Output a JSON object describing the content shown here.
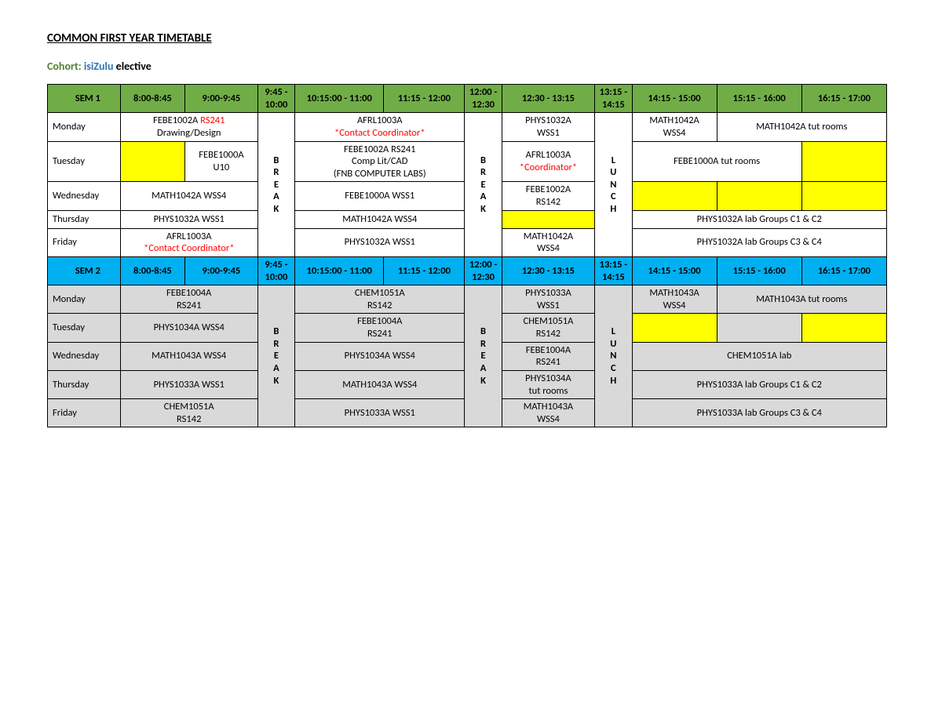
{
  "title": "COMMON FIRST YEAR TIMETABLE",
  "cohort": {
    "label": "Cohort:",
    "value": "isiZulu",
    "suffix": "elective"
  },
  "colors": {
    "header_green": "#70ad47",
    "header_blue": "#00b0f0",
    "highlight_yellow": "#ffff00",
    "grey_fill": "#d9d9d9",
    "red_text": "#ff0000",
    "border": "#000000",
    "background": "#ffffff"
  },
  "times": {
    "t0": "8:00-8:45",
    "t1": "9:00-9:45",
    "t2": "9:45 - 10:00",
    "t3": "10:15:00 - 11:00",
    "t4": "11:15 - 12:00",
    "t5": "12:00 - 12:30",
    "t6": "12:30 - 13:15",
    "t7": "13:15 - 14:15",
    "t8": "14:15 - 15:00",
    "t9": "15:15 - 16:00",
    "t10": "16:15 - 17:00"
  },
  "labels": {
    "sem1": "SEM 1",
    "sem2": "SEM 2",
    "break": "BREAK",
    "lunch": "LUNCH",
    "days": {
      "mon": "Monday",
      "tue": "Tuesday",
      "wed": "Wednesday",
      "thu": "Thursday",
      "fri": "Friday"
    }
  },
  "sem1": {
    "mon": {
      "s12_l1a": "FEBE1002A ",
      "s12_l1b": "RS241",
      "s12_l2": "Drawing/Design",
      "s34_l1": "AFRL1003A",
      "s34_l2": "*Contact Coordinator*",
      "s5_l1": "PHYS1032A",
      "s5_l2": "WSS1",
      "s6_l1": "MATH1042A",
      "s6_l2": "WSS4",
      "s78": "MATH1042A tut rooms"
    },
    "tue": {
      "s2_l1": "FEBE1000A",
      "s2_l2": "U10",
      "s34_l1": "FEBE1002A RS241",
      "s34_l2": "Comp Lit/CAD",
      "s34_l3": "(FNB COMPUTER LABS)",
      "s5_l1": "AFRL1003A",
      "s5_l2": "*Coordinator*",
      "s67": "FEBE1000A tut rooms"
    },
    "wed": {
      "s12": "MATH1042A WSS4",
      "s34": "FEBE1000A WSS1",
      "s5_l1": "FEBE1002A",
      "s5_l2": "RS142"
    },
    "thu": {
      "s12": "PHYS1032A WSS1",
      "s34": "MATH1042A WSS4",
      "s678": "PHYS1032A lab Groups C1 & C2"
    },
    "fri": {
      "s12_l1": "AFRL1003A",
      "s12_l2": "*Contact Coordinator*",
      "s34": "PHYS1032A WSS1",
      "s5_l1": "MATH1042A",
      "s5_l2": "WSS4",
      "s678": "PHYS1032A lab Groups C3 & C4"
    }
  },
  "sem2": {
    "mon": {
      "s12_l1": "FEBE1004A",
      "s12_l2": "RS241",
      "s34_l1": "CHEM1051A",
      "s34_l2": "RS142",
      "s5_l1": "PHYS1033A",
      "s5_l2": "WSS1",
      "s6_l1": "MATH1043A",
      "s6_l2": "WSS4",
      "s78": "MATH1043A tut rooms"
    },
    "tue": {
      "s12": "PHYS1034A WSS4",
      "s34_l1": "FEBE1004A",
      "s34_l2": "RS241",
      "s5_l1": "CHEM1051A",
      "s5_l2": "RS142"
    },
    "wed": {
      "s12": "MATH1043A WSS4",
      "s34": "PHYS1034A WSS4",
      "s5_l1": "FEBE1004A",
      "s5_l2": "RS241",
      "s678": "CHEM1051A lab"
    },
    "thu": {
      "s12": "PHYS1033A WSS1",
      "s34": "MATH1043A WSS4",
      "s5_l1": "PHYS1034A",
      "s5_l2": "tut rooms",
      "s678": "PHYS1033A lab Groups C1 & C2"
    },
    "fri": {
      "s12_l1": "CHEM1051A",
      "s12_l2": "RS142",
      "s34": "PHYS1033A WSS1",
      "s5_l1": "MATH1043A",
      "s5_l2": "WSS4",
      "s678": "PHYS1033A lab Groups C3 & C4"
    }
  }
}
